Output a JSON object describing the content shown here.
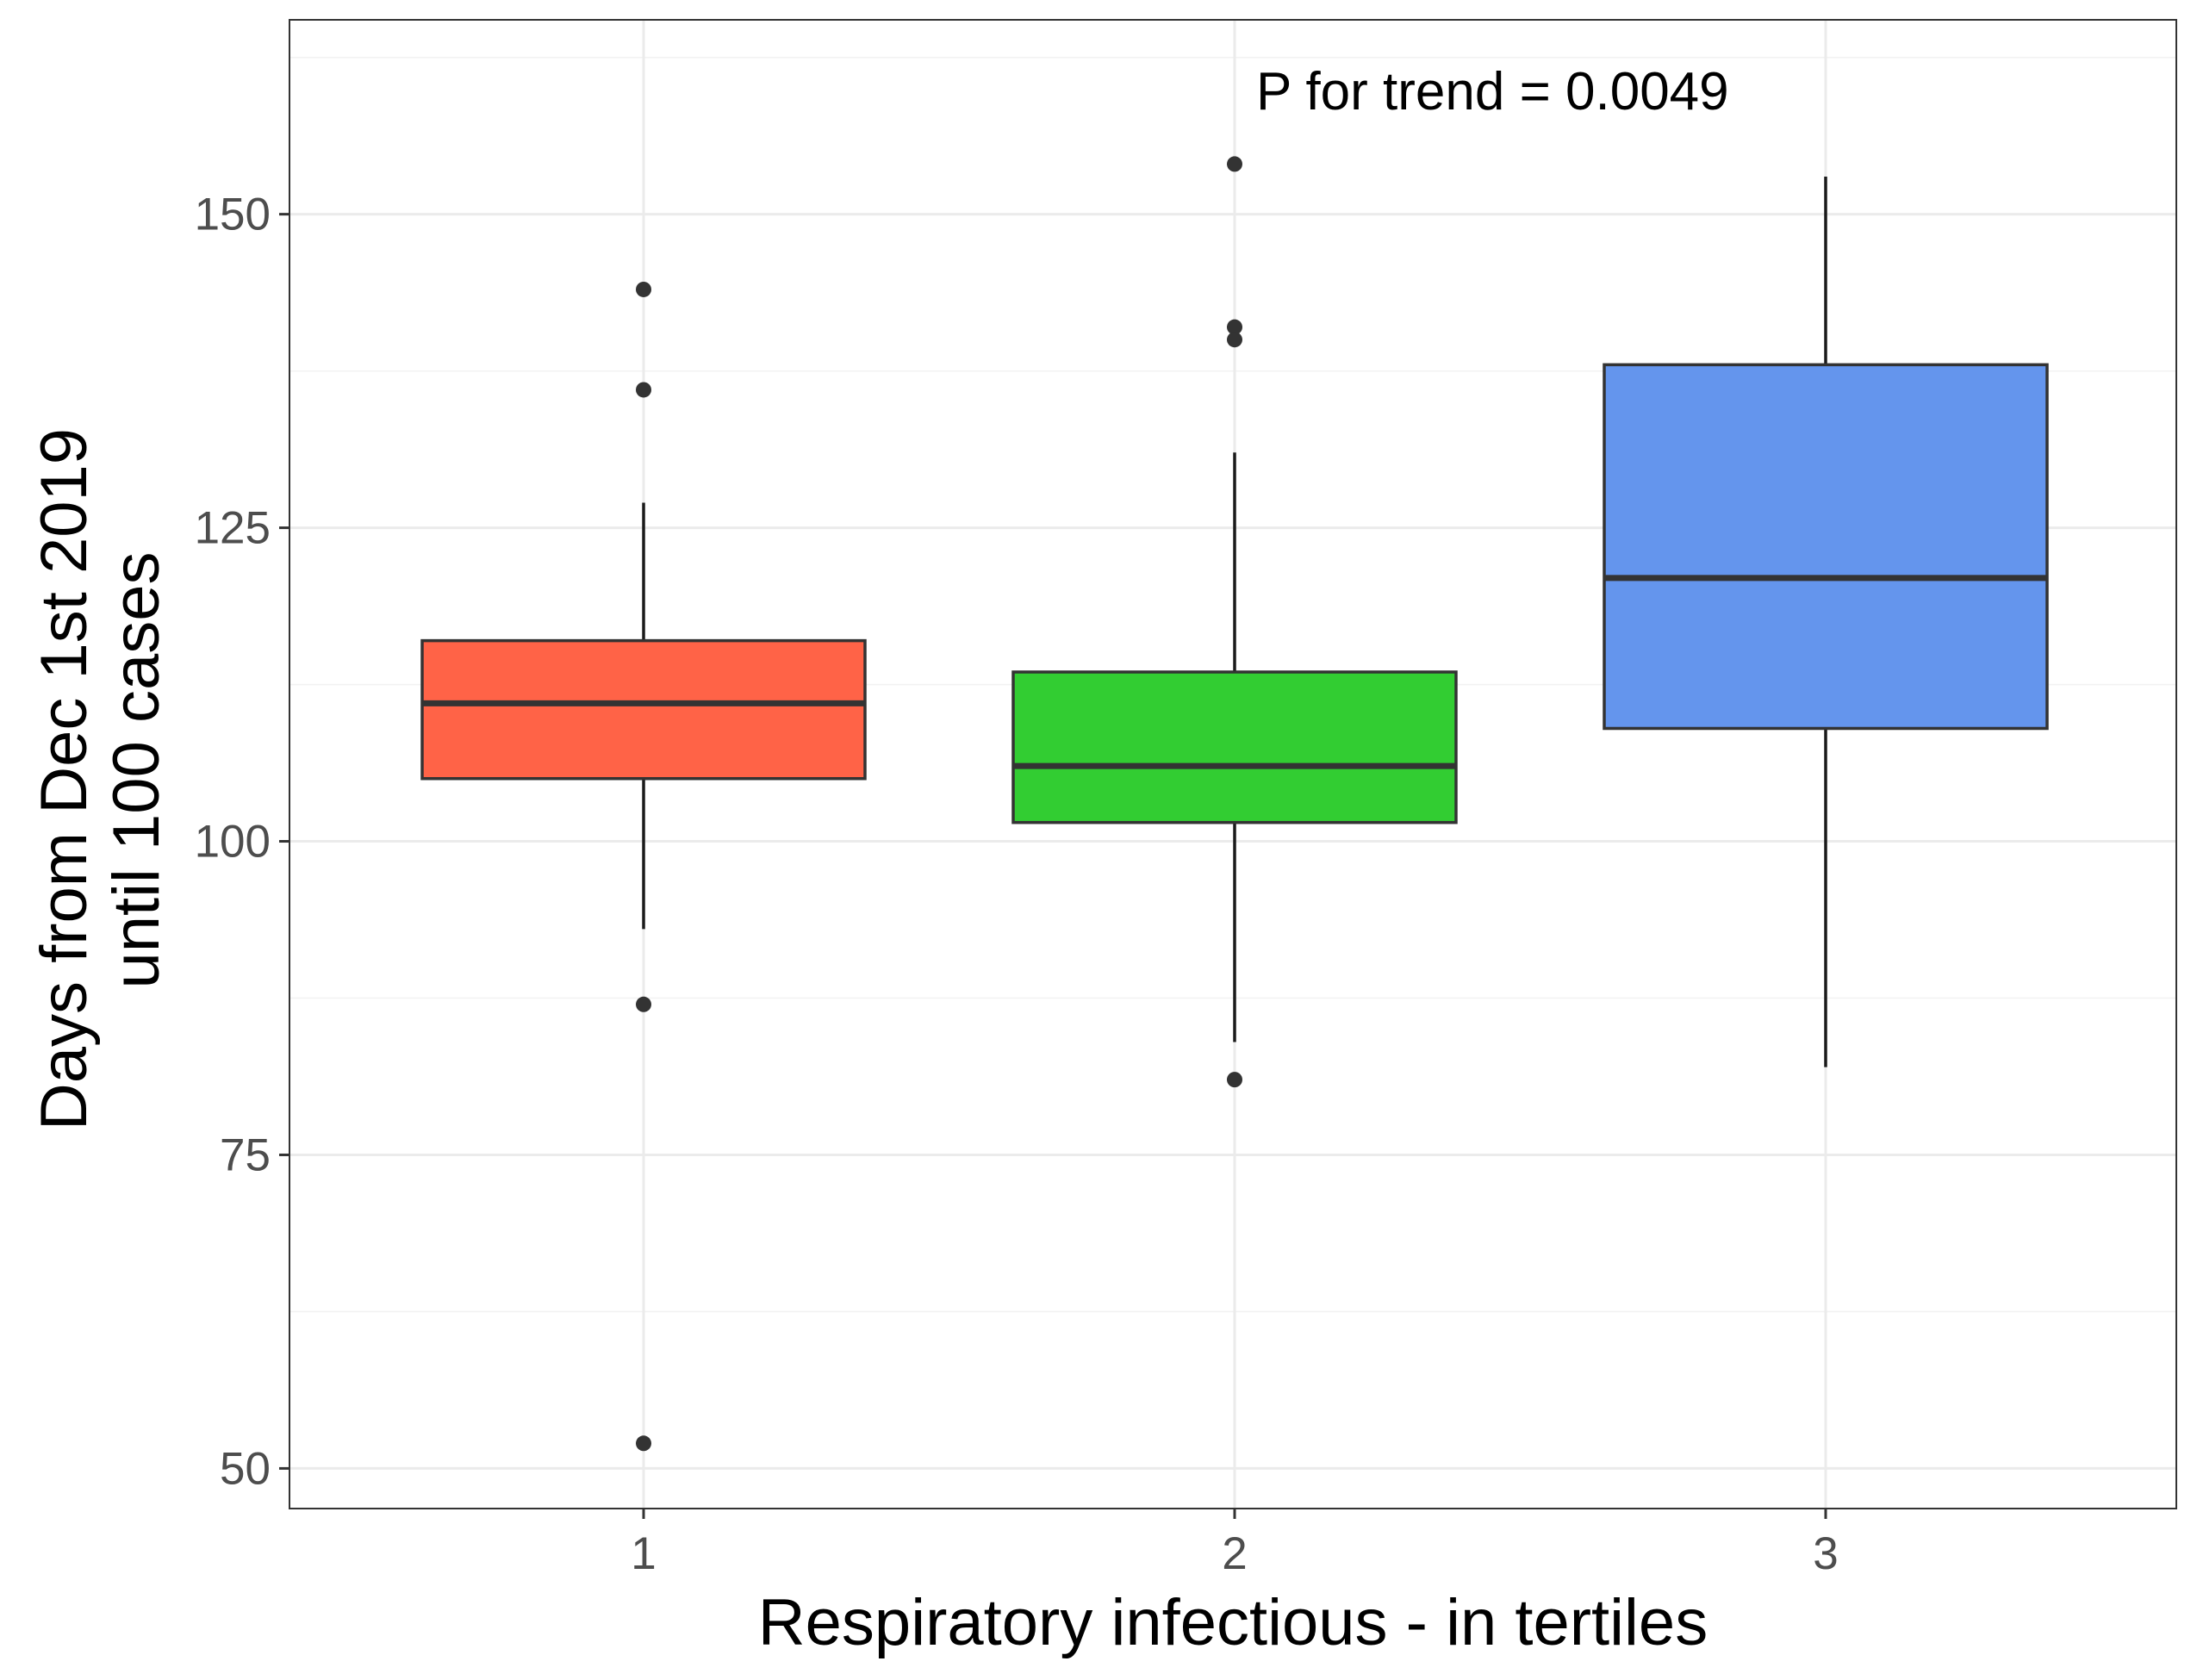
{
  "chart_data": {
    "type": "box",
    "xlabel": "Respiratory infectious - in tertiles",
    "ylabel_lines": [
      "Days from Dec 1st 2019",
      "until 100 cases"
    ],
    "annotation": "P for trend = 0.0049",
    "ylim": [
      46.8,
      165.5
    ],
    "y_major_ticks": [
      50,
      75,
      100,
      125,
      150
    ],
    "y_minor_ticks": [
      62.5,
      87.5,
      112.5,
      137.5,
      162.5
    ],
    "grid": true,
    "categories": [
      "1",
      "2",
      "3"
    ],
    "boxes": [
      {
        "category": "1",
        "lower_whisker": 93,
        "q1": 105,
        "median": 111,
        "q3": 116,
        "upper_whisker": 127,
        "outliers": [
          144,
          136,
          87,
          52
        ],
        "fill": "#FF6347"
      },
      {
        "category": "2",
        "lower_whisker": 84,
        "q1": 101.5,
        "median": 106,
        "q3": 113.5,
        "upper_whisker": 131,
        "outliers": [
          154,
          141,
          140,
          81
        ],
        "fill": "#32CD32"
      },
      {
        "category": "3",
        "lower_whisker": 82,
        "q1": 109,
        "median": 121,
        "q3": 138,
        "upper_whisker": 153,
        "outliers": [],
        "fill": "#6495ED"
      }
    ]
  }
}
